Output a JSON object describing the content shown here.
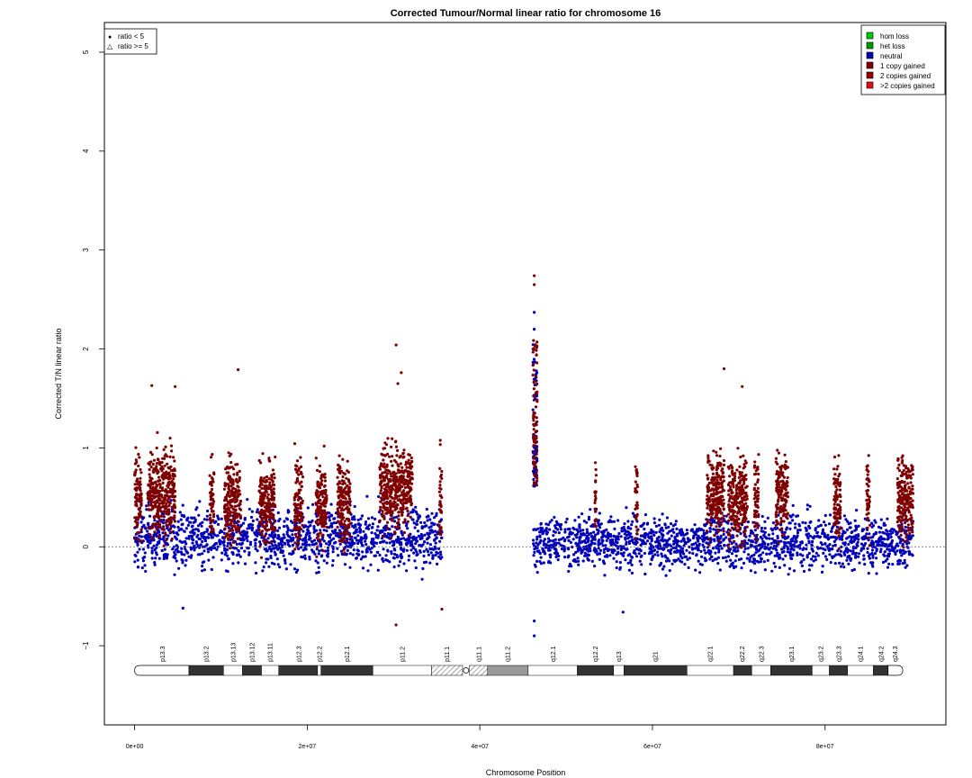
{
  "chart_data": {
    "type": "scatter",
    "title": "Corrected Tumour/Normal linear ratio for chromosome  16",
    "xlabel": "Chromosome Position",
    "ylabel": "Corrected T/N linear ratio",
    "xlim": [
      -3500000,
      94000000
    ],
    "ylim": [
      -1.8,
      5.3
    ],
    "x_ticks": [
      0,
      20000000,
      40000000,
      60000000,
      80000000
    ],
    "x_tick_labels": [
      "0e+00",
      "2e+07",
      "4e+07",
      "6e+07",
      "8e+07"
    ],
    "y_ticks": [
      -1,
      0,
      1,
      2,
      3,
      4,
      5
    ],
    "y_tick_labels": [
      "−1",
      "0",
      "1",
      "2",
      "3",
      "4",
      "5"
    ],
    "reference_line_y": 0,
    "shape_legend": {
      "position": "top-left",
      "items": [
        {
          "symbol": "●",
          "label": "ratio < 5"
        },
        {
          "symbol": "△",
          "label": "ratio >= 5"
        }
      ]
    },
    "legend": {
      "position": "top-right",
      "items": [
        {
          "label": "hom loss",
          "color": "#00cc00"
        },
        {
          "label": "het loss",
          "color": "#009900"
        },
        {
          "label": "neutral",
          "color": "#0000bb"
        },
        {
          "label": "1 copy gained",
          "color": "#7f0000"
        },
        {
          "label": "2 copies gained",
          "color": "#990000"
        },
        {
          "label": ">2 copies gained",
          "color": "#dd1111"
        }
      ]
    },
    "series": [
      {
        "name": "neutral",
        "color": "#0000bb",
        "segments": [
          {
            "x": [
              0,
              35600000
            ],
            "y_median": 0.1,
            "y_spread": 0.35
          },
          {
            "x": [
              46200000,
              90200000
            ],
            "y_median": 0.05,
            "y_spread": 0.32
          }
        ],
        "outliers": [
          [
            46300000,
            2.37
          ],
          [
            46300000,
            2.2
          ],
          [
            46300000,
            -0.9
          ],
          [
            46300000,
            -0.75
          ],
          [
            5600000,
            -0.62
          ],
          [
            56600000,
            -0.66
          ]
        ]
      },
      {
        "name": "1 copy gained",
        "color": "#7f0000",
        "segments": [
          {
            "x": [
              0,
              800000
            ],
            "y_median": 0.5
          },
          {
            "x": [
              1500000,
              4700000
            ],
            "y_median": 0.55
          },
          {
            "x": [
              8700000,
              9200000
            ],
            "y_median": 0.5
          },
          {
            "x": [
              10400000,
              12300000
            ],
            "y_median": 0.45
          },
          {
            "x": [
              14400000,
              16300000
            ],
            "y_median": 0.45
          },
          {
            "x": [
              18500000,
              19500000
            ],
            "y_median": 0.45
          },
          {
            "x": [
              21000000,
              22300000
            ],
            "y_median": 0.4
          },
          {
            "x": [
              23500000,
              25000000
            ],
            "y_median": 0.45
          },
          {
            "x": [
              28400000,
              32200000
            ],
            "y_median": 0.6
          },
          {
            "x": [
              35300000,
              35600000
            ],
            "y_median": 0.5
          },
          {
            "x": [
              46200000,
              46600000
            ],
            "y_median": 1.0
          },
          {
            "x": [
              53300000,
              53500000
            ],
            "y_median": 0.5
          },
          {
            "x": [
              58000000,
              58300000
            ],
            "y_median": 0.5
          },
          {
            "x": [
              66300000,
              68300000
            ],
            "y_median": 0.55
          },
          {
            "x": [
              68800000,
              71000000
            ],
            "y_median": 0.45
          },
          {
            "x": [
              71800000,
              72300000
            ],
            "y_median": 0.5
          },
          {
            "x": [
              74300000,
              75700000
            ],
            "y_median": 0.55
          },
          {
            "x": [
              81000000,
              81800000
            ],
            "y_median": 0.45
          },
          {
            "x": [
              84800000,
              85200000
            ],
            "y_median": 0.5
          },
          {
            "x": [
              88400000,
              90200000
            ],
            "y_median": 0.5
          }
        ],
        "outliers": [
          [
            46300000,
            2.74
          ],
          [
            46300000,
            2.65
          ],
          [
            30300000,
            2.04
          ],
          [
            12000000,
            1.79
          ],
          [
            68300000,
            1.8
          ],
          [
            70400000,
            1.62
          ],
          [
            2000000,
            1.63
          ],
          [
            4700000,
            1.62
          ],
          [
            30900000,
            1.76
          ],
          [
            30500000,
            1.65
          ],
          [
            30300000,
            -0.79
          ],
          [
            35600000,
            -0.63
          ]
        ]
      }
    ],
    "ideogram": {
      "labels": [
        "p13.3",
        "p13.2",
        "p13.13",
        "p13.12",
        "p13.11",
        "p12.3",
        "p12.2",
        "p12.1",
        "p11.2",
        "p11.1",
        "q11.1",
        "q11.2",
        "q12.1",
        "q12.2",
        "q13",
        "q21",
        "q22.1",
        "q22.2",
        "q22.3",
        "q23.1",
        "q23.2",
        "q23.3",
        "q24.1",
        "q24.2",
        "q24.3"
      ],
      "bands": [
        {
          "start": 0,
          "end": 6300000,
          "stain": "gneg"
        },
        {
          "start": 6300000,
          "end": 10300000,
          "stain": "gpos"
        },
        {
          "start": 10300000,
          "end": 12500000,
          "stain": "gneg"
        },
        {
          "start": 12500000,
          "end": 14700000,
          "stain": "gpos"
        },
        {
          "start": 14700000,
          "end": 16700000,
          "stain": "gneg"
        },
        {
          "start": 16700000,
          "end": 21200000,
          "stain": "gpos"
        },
        {
          "start": 21200000,
          "end": 21600000,
          "stain": "gneg"
        },
        {
          "start": 21600000,
          "end": 27600000,
          "stain": "gpos"
        },
        {
          "start": 27600000,
          "end": 34400000,
          "stain": "gneg"
        },
        {
          "start": 34400000,
          "end": 38000000,
          "stain": "acen"
        },
        {
          "start": 38800000,
          "end": 40900000,
          "stain": "acen"
        },
        {
          "start": 40900000,
          "end": 45600000,
          "stain": "gvar"
        },
        {
          "start": 45600000,
          "end": 51300000,
          "stain": "gneg"
        },
        {
          "start": 51300000,
          "end": 55500000,
          "stain": "gpos"
        },
        {
          "start": 55500000,
          "end": 56700000,
          "stain": "gneg"
        },
        {
          "start": 56700000,
          "end": 64000000,
          "stain": "gpos"
        },
        {
          "start": 64000000,
          "end": 69400000,
          "stain": "gneg"
        },
        {
          "start": 69400000,
          "end": 71500000,
          "stain": "gpos"
        },
        {
          "start": 71500000,
          "end": 73700000,
          "stain": "gneg"
        },
        {
          "start": 73700000,
          "end": 78500000,
          "stain": "gpos"
        },
        {
          "start": 78500000,
          "end": 80500000,
          "stain": "gneg"
        },
        {
          "start": 80500000,
          "end": 82600000,
          "stain": "gpos"
        },
        {
          "start": 82600000,
          "end": 85600000,
          "stain": "gneg"
        },
        {
          "start": 85600000,
          "end": 87300000,
          "stain": "gpos"
        },
        {
          "start": 87300000,
          "end": 89000000,
          "stain": "gneg"
        }
      ],
      "label_positions": [
        3200000,
        8300000,
        11400000,
        13600000,
        15700000,
        19000000,
        21400000,
        24600000,
        31000000,
        36200000,
        39900000,
        43200000,
        48500000,
        53400000,
        56100000,
        60300000,
        66700000,
        70400000,
        72600000,
        76100000,
        79500000,
        81600000,
        84100000,
        86500000,
        88100000
      ]
    }
  }
}
